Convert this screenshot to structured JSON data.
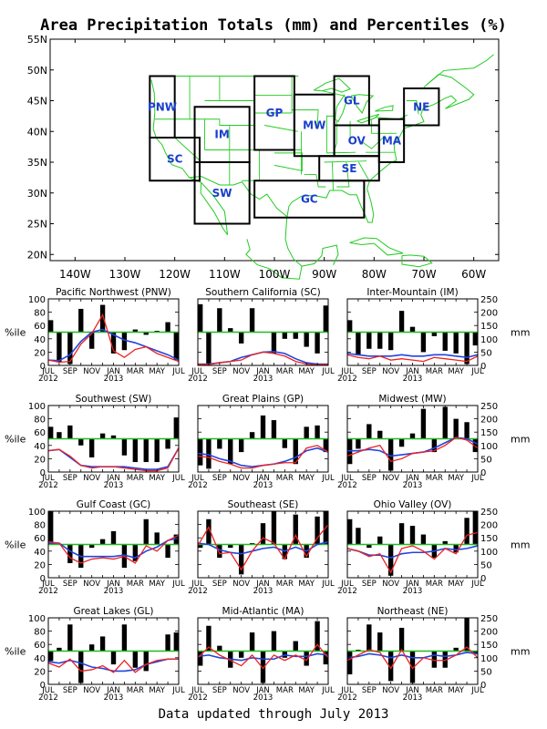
{
  "title": "Area Precipitation Totals (mm) and Percentiles (%)",
  "footer": "Data updated through July 2013",
  "colors": {
    "map_lines": "#22cc22",
    "region_box": "#000000",
    "region_label": "#1a3ecc",
    "percentile_ref": "#22bb22",
    "bars": "#000000",
    "monthly_line": "#ee2222",
    "mean_line": "#2244dd"
  },
  "map": {
    "lon_labels": [
      "140W",
      "130W",
      "120W",
      "110W",
      "100W",
      "90W",
      "80W",
      "70W",
      "60W"
    ],
    "lat_labels": [
      "55N",
      "50N",
      "45N",
      "40N",
      "35N",
      "30N",
      "25N",
      "20N"
    ],
    "regions": [
      {
        "code": "PNW",
        "lon0": -125,
        "lon1": -120,
        "lat0": 39,
        "lat1": 49
      },
      {
        "code": "SC",
        "lon0": -125,
        "lon1": -115,
        "lat0": 32,
        "lat1": 39
      },
      {
        "code": "IM",
        "lon0": -116,
        "lon1": -105,
        "lat0": 35,
        "lat1": 44
      },
      {
        "code": "SW",
        "lon0": -116,
        "lon1": -105,
        "lat0": 25,
        "lat1": 35
      },
      {
        "code": "GP",
        "lon0": -104,
        "lon1": -96,
        "lat0": 37,
        "lat1": 49
      },
      {
        "code": "MW",
        "lon0": -96,
        "lon1": -88,
        "lat0": 36,
        "lat1": 46
      },
      {
        "code": "GL",
        "lon0": -88,
        "lon1": -81,
        "lat0": 41,
        "lat1": 49
      },
      {
        "code": "OV",
        "lon0": -88,
        "lon1": -79,
        "lat0": 36,
        "lat1": 41
      },
      {
        "code": "SE",
        "lon0": -91,
        "lon1": -79,
        "lat0": 32,
        "lat1": 36
      },
      {
        "code": "GC",
        "lon0": -104,
        "lon1": -82,
        "lat0": 26,
        "lat1": 32
      },
      {
        "code": "MA",
        "lon0": -79,
        "lon1": -74,
        "lat0": 35,
        "lat1": 42
      },
      {
        "code": "NE",
        "lon0": -74,
        "lon1": -67,
        "lat0": 41,
        "lat1": 47
      }
    ]
  },
  "chart_data": {
    "type": "bar",
    "x_tick_labels": [
      "JUL",
      "SEP",
      "NOV",
      "JAN",
      "MAR",
      "MAY",
      "JUL"
    ],
    "x_year_labels": [
      "2012",
      "2013"
    ],
    "left_axis_label": "%ile",
    "right_axis_label": "mm",
    "left_ticks": [
      "0",
      "20",
      "40",
      "60",
      "80",
      "100"
    ],
    "right_ticks": [
      "0",
      "50",
      "100",
      "150",
      "200",
      "250"
    ],
    "ylim_percentile": [
      0,
      100
    ],
    "percentile_reference": 50,
    "months": [
      "Jul 2012",
      "Aug 2012",
      "Sep 2012",
      "Oct 2012",
      "Nov 2012",
      "Dec 2012",
      "Jan 2013",
      "Feb 2013",
      "Mar 2013",
      "Apr 2013",
      "May 2013",
      "Jun 2013",
      "Jul 2013"
    ],
    "panels": [
      {
        "title": "Pacific Northwest (PNW)",
        "mm_max": 250,
        "percentiles": [
          68,
          5,
          2,
          85,
          25,
          91,
          18,
          23,
          54,
          46,
          52,
          65,
          8
        ],
        "monthly_mm": [
          20,
          12,
          15,
          80,
          120,
          190,
          55,
          30,
          60,
          70,
          45,
          30,
          15
        ],
        "mean_mm": [
          20,
          18,
          40,
          90,
          125,
          135,
          115,
          95,
          85,
          70,
          55,
          40,
          20
        ]
      },
      {
        "title": "Southern California (SC)",
        "mm_max": 250,
        "percentiles": [
          92,
          2,
          86,
          56,
          33,
          86,
          50,
          18,
          40,
          40,
          28,
          18,
          90
        ],
        "monthly_mm": [
          5,
          3,
          10,
          15,
          20,
          40,
          50,
          45,
          35,
          15,
          5,
          2,
          4
        ],
        "mean_mm": [
          5,
          5,
          10,
          15,
          30,
          40,
          50,
          52,
          45,
          25,
          10,
          5,
          5
        ]
      },
      {
        "title": "Inter-Mountain (IM)",
        "mm_max": 250,
        "percentiles": [
          68,
          15,
          25,
          25,
          23,
          82,
          58,
          20,
          44,
          22,
          18,
          2,
          30
        ],
        "monthly_mm": [
          40,
          30,
          25,
          35,
          20,
          25,
          20,
          15,
          30,
          25,
          20,
          15,
          35
        ],
        "mean_mm": [
          45,
          40,
          35,
          35,
          35,
          40,
          35,
          35,
          40,
          40,
          35,
          30,
          40
        ]
      },
      {
        "title": "Southwest (SW)",
        "mm_max": 250,
        "percentiles": [
          68,
          60,
          70,
          40,
          22,
          58,
          55,
          25,
          15,
          15,
          15,
          35,
          82
        ],
        "monthly_mm": [
          80,
          85,
          60,
          25,
          15,
          20,
          20,
          15,
          10,
          5,
          5,
          15,
          90
        ],
        "mean_mm": [
          80,
          85,
          55,
          25,
          20,
          20,
          20,
          20,
          15,
          10,
          10,
          20,
          90
        ]
      },
      {
        "title": "Great Plains (GP)",
        "mm_max": 250,
        "percentiles": [
          10,
          5,
          35,
          12,
          30,
          60,
          85,
          78,
          36,
          12,
          68,
          70,
          30
        ],
        "monthly_mm": [
          60,
          55,
          40,
          30,
          15,
          15,
          25,
          30,
          35,
          35,
          90,
          100,
          75
        ],
        "mean_mm": [
          70,
          65,
          50,
          40,
          25,
          20,
          25,
          30,
          40,
          55,
          80,
          90,
          75
        ]
      },
      {
        "title": "Midwest (MW)",
        "mm_max": 250,
        "percentiles": [
          12,
          35,
          72,
          62,
          2,
          38,
          58,
          95,
          30,
          98,
          80,
          75,
          30
        ],
        "monthly_mm": [
          60,
          75,
          90,
          100,
          40,
          50,
          70,
          75,
          80,
          100,
          130,
          120,
          90
        ],
        "mean_mm": [
          80,
          80,
          85,
          80,
          60,
          65,
          70,
          75,
          90,
          110,
          130,
          125,
          105
        ]
      },
      {
        "title": "Gulf Coast (GC)",
        "mm_max": 250,
        "percentiles": [
          100,
          50,
          22,
          15,
          45,
          58,
          70,
          15,
          25,
          88,
          68,
          30,
          65
        ],
        "monthly_mm": [
          135,
          130,
          75,
          55,
          70,
          75,
          70,
          80,
          55,
          120,
          100,
          140,
          160
        ],
        "mean_mm": [
          130,
          130,
          100,
          80,
          80,
          80,
          80,
          85,
          75,
          100,
          115,
          140,
          150
        ]
      },
      {
        "title": "Southeast (SE)",
        "mm_max": 250,
        "percentiles": [
          45,
          88,
          30,
          45,
          5,
          52,
          82,
          100,
          28,
          95,
          30,
          92,
          100
        ],
        "monthly_mm": [
          120,
          190,
          90,
          95,
          30,
          100,
          150,
          130,
          70,
          160,
          80,
          150,
          200
        ],
        "mean_mm": [
          130,
          125,
          105,
          95,
          90,
          100,
          110,
          115,
          100,
          115,
          100,
          125,
          135
        ]
      },
      {
        "title": "Ohio Valley (OV)",
        "mm_max": 250,
        "percentiles": [
          88,
          75,
          45,
          62,
          3,
          82,
          78,
          65,
          30,
          55,
          38,
          90,
          100
        ],
        "monthly_mm": [
          110,
          100,
          80,
          90,
          20,
          110,
          120,
          100,
          70,
          110,
          90,
          160,
          170
        ],
        "mean_mm": [
          110,
          100,
          85,
          85,
          75,
          90,
          95,
          95,
          100,
          110,
          105,
          110,
          120
        ]
      },
      {
        "title": "Great Lakes (GL)",
        "mm_max": 250,
        "percentiles": [
          35,
          55,
          90,
          2,
          60,
          72,
          30,
          90,
          25,
          20,
          50,
          75,
          78
        ],
        "monthly_mm": [
          80,
          65,
          95,
          50,
          55,
          70,
          45,
          90,
          45,
          75,
          90,
          95,
          95
        ],
        "mean_mm": [
          85,
          80,
          90,
          80,
          65,
          60,
          50,
          50,
          55,
          75,
          85,
          95,
          95
        ]
      },
      {
        "title": "Mid-Atlantic (MA)",
        "mm_max": 250,
        "percentiles": [
          28,
          88,
          58,
          25,
          40,
          78,
          2,
          80,
          40,
          65,
          28,
          95,
          30
        ],
        "monthly_mm": [
          100,
          140,
          110,
          90,
          70,
          110,
          60,
          110,
          90,
          110,
          90,
          150,
          100
        ],
        "mean_mm": [
          105,
          110,
          100,
          95,
          90,
          100,
          95,
          95,
          110,
          105,
          105,
          115,
          110
        ]
      },
      {
        "title": "Northeast (NE)",
        "mm_max": 250,
        "percentiles": [
          15,
          52,
          90,
          78,
          5,
          85,
          2,
          50,
          25,
          25,
          55,
          100,
          45
        ],
        "monthly_mm": [
          90,
          110,
          130,
          120,
          60,
          130,
          60,
          100,
          90,
          90,
          110,
          140,
          100
        ],
        "mean_mm": [
          100,
          105,
          115,
          110,
          100,
          110,
          100,
          100,
          110,
          105,
          110,
          120,
          115
        ]
      }
    ]
  }
}
